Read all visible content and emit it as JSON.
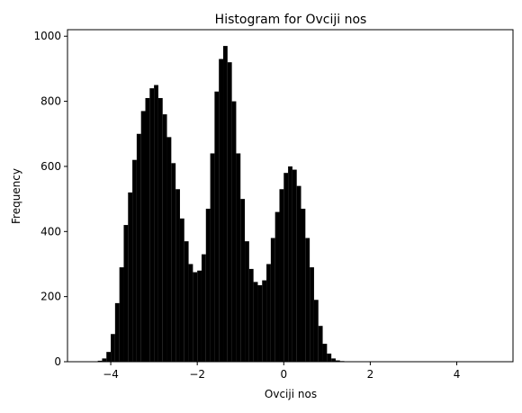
{
  "chart_data": {
    "type": "bar",
    "title": "Histogram for Ovciji nos",
    "xlabel": "Ovciji nos",
    "ylabel": "Frequency",
    "xlim": [
      -5.0,
      5.3
    ],
    "ylim": [
      0,
      1020
    ],
    "xticks": [
      -4,
      -2,
      0,
      2,
      4
    ],
    "xtick_labels": [
      "−4",
      "−2",
      "0",
      "2",
      "4"
    ],
    "yticks": [
      0,
      200,
      400,
      600,
      800,
      1000
    ],
    "ytick_labels": [
      "0",
      "200",
      "400",
      "600",
      "800",
      "1000"
    ],
    "grid": false,
    "bar_color": "#000000",
    "bin_range": [
      -4.6,
      5.0
    ],
    "bin_width": 0.1,
    "values": [
      0,
      0,
      1,
      3,
      10,
      30,
      85,
      180,
      290,
      420,
      520,
      620,
      700,
      770,
      810,
      840,
      850,
      810,
      760,
      690,
      610,
      530,
      440,
      370,
      300,
      275,
      280,
      330,
      470,
      640,
      830,
      930,
      970,
      920,
      800,
      640,
      500,
      370,
      285,
      245,
      235,
      250,
      300,
      380,
      460,
      530,
      580,
      600,
      590,
      540,
      470,
      380,
      290,
      190,
      110,
      55,
      25,
      10,
      4,
      2,
      1,
      0,
      0,
      0,
      0,
      0,
      0,
      0,
      0,
      0,
      0,
      0,
      0,
      0,
      0,
      0,
      0,
      0,
      0,
      0,
      0,
      0,
      0,
      0,
      0,
      0,
      0,
      0,
      0,
      0,
      0,
      0,
      0,
      0,
      0,
      0
    ]
  }
}
